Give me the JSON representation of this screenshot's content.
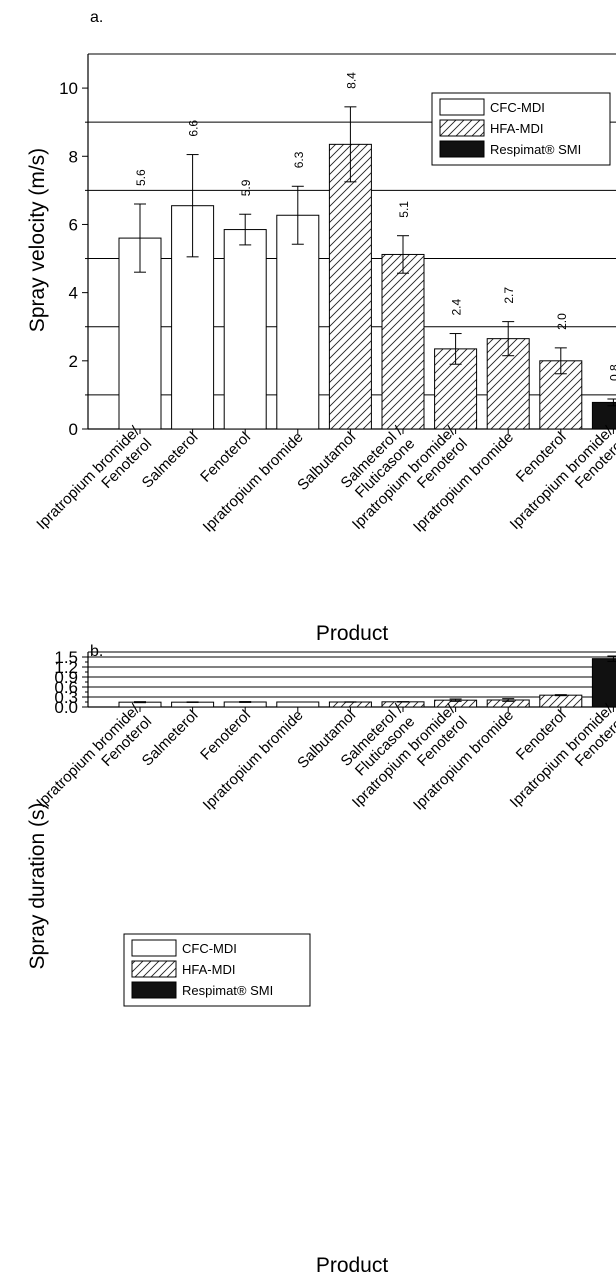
{
  "chart_data": [
    {
      "type": "bar",
      "panel_label": "a.",
      "title": "",
      "xlabel": "Product",
      "ylabel": "Spray velocity (m/s)",
      "ylim": [
        0,
        11
      ],
      "yticks": [
        0,
        2,
        4,
        6,
        8,
        10
      ],
      "gridlines": [
        1,
        3,
        5,
        7,
        9
      ],
      "legend_position": "top-right",
      "legend": [
        {
          "name": "CFC-MDI",
          "pattern": "white"
        },
        {
          "name": "HFA-MDI",
          "pattern": "hatch"
        },
        {
          "name": "Respimat® SMI",
          "pattern": "black"
        }
      ],
      "categories": [
        "Ipratropium bromide/\nFenoterol",
        "Salmeterol",
        "Fenoterol",
        "Ipratropium bromide",
        "Salbutamol",
        "Salmeterol /\nFluticasone",
        "Ipratropium bromide/\nFenoterol",
        "Ipratropium bromide",
        "Fenoterol",
        "Ipratropium bromide/\nFenoterol"
      ],
      "group": [
        "CFC-MDI",
        "CFC-MDI",
        "CFC-MDI",
        "CFC-MDI",
        "HFA-MDI",
        "HFA-MDI",
        "HFA-MDI",
        "HFA-MDI",
        "HFA-MDI",
        "Respimat® SMI"
      ],
      "values": [
        5.6,
        6.55,
        5.85,
        6.27,
        8.35,
        5.12,
        2.35,
        2.65,
        2.0,
        0.78
      ],
      "error": [
        1.0,
        1.5,
        0.45,
        0.85,
        1.1,
        0.55,
        0.45,
        0.5,
        0.38,
        0.1
      ],
      "data_labels": [
        "5.6",
        "6.6",
        "5.9",
        "6.3",
        "8.4",
        "5.1",
        "2.4",
        "2.7",
        "2.0",
        "0.8"
      ]
    },
    {
      "type": "bar",
      "panel_label": "b.",
      "title": "",
      "xlabel": "Product",
      "ylabel": "Spray duration (s)",
      "ylim": [
        0,
        1.65
      ],
      "yticks": [
        0.0,
        0.3,
        0.6,
        0.9,
        1.2,
        1.5
      ],
      "ytick_labels": [
        "0.0",
        "0.3",
        "0.6",
        "0.9",
        "1.2",
        "1.5"
      ],
      "gridlines": [
        0.3,
        0.6,
        0.9,
        1.2,
        1.5
      ],
      "legend_position": "middle-left",
      "legend": [
        {
          "name": "CFC-MDI",
          "pattern": "white"
        },
        {
          "name": "HFA-MDI",
          "pattern": "hatch"
        },
        {
          "name": "Respimat® SMI",
          "pattern": "black"
        }
      ],
      "categories": [
        "Ipratropium bromide/\nFenoterol",
        "Salmeterol",
        "Fenoterol",
        "Ipratropium bromide",
        "Salbutamol",
        "Salmeterol /\nFluticasone",
        "Ipratropium bromide/\nFenoterol",
        "Ipratropium bromide",
        "Fenoterol",
        "Ipratropium bromide/\nFenoterol"
      ],
      "group": [
        "CFC-MDI",
        "CFC-MDI",
        "CFC-MDI",
        "CFC-MDI",
        "HFA-MDI",
        "HFA-MDI",
        "HFA-MDI",
        "HFA-MDI",
        "HFA-MDI",
        "Respimat® SMI"
      ],
      "values": [
        0.145,
        0.145,
        0.15,
        0.15,
        0.15,
        0.155,
        0.205,
        0.21,
        0.355,
        1.45
      ],
      "error": [
        0.015,
        0.008,
        0.013,
        0.0,
        0.006,
        0.006,
        0.035,
        0.04,
        0.015,
        0.08
      ]
    }
  ]
}
